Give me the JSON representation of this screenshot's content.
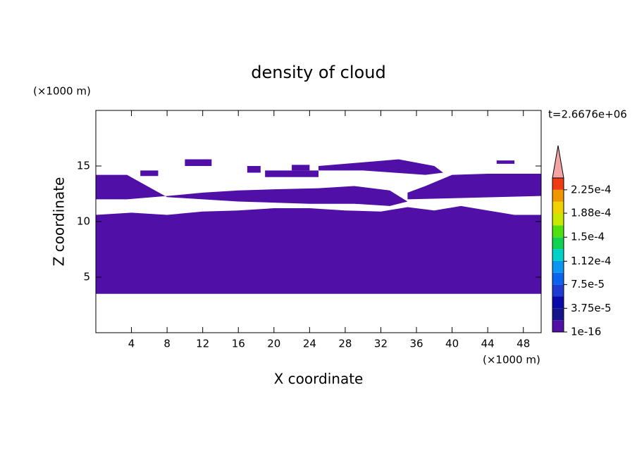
{
  "chart_data": {
    "type": "contour",
    "title": "density of cloud",
    "x_label": "X coordinate",
    "y_label": "Z coordinate",
    "x_unit": "(×1000 m)",
    "y_unit": "(×1000 m)",
    "annotation": "t=2.6676e+06",
    "xlim": [
      0,
      50
    ],
    "ylim": [
      0,
      20
    ],
    "xticks": [
      4,
      8,
      12,
      16,
      20,
      24,
      28,
      32,
      36,
      40,
      44,
      48
    ],
    "yticks": [
      5,
      10,
      15
    ],
    "regions": [
      {
        "x": [
          0,
          50,
          50,
          47,
          44,
          41,
          38,
          35,
          32,
          28,
          24,
          20,
          16,
          12,
          8,
          4,
          0
        ],
        "z": [
          3.5,
          3.5,
          10.6,
          10.6,
          11.0,
          11.4,
          11.0,
          11.3,
          10.9,
          11.0,
          11.2,
          11.2,
          11.0,
          10.9,
          10.6,
          10.8,
          10.6
        ]
      },
      {
        "x": [
          0,
          3.5,
          8,
          12,
          16,
          20,
          25,
          29,
          33,
          35,
          33,
          29,
          24,
          20,
          16,
          12,
          8,
          3.5,
          0
        ],
        "z": [
          12.0,
          12.0,
          12.3,
          12.6,
          12.8,
          12.9,
          13.0,
          13.2,
          12.8,
          11.8,
          11.4,
          11.6,
          11.6,
          11.7,
          11.8,
          12.0,
          12.2,
          14.2,
          14.2
        ]
      },
      {
        "x": [
          35,
          50,
          50,
          44,
          40,
          37,
          35
        ],
        "z": [
          12.0,
          12.3,
          14.3,
          14.3,
          14.2,
          13.2,
          12.6
        ]
      },
      {
        "x": [
          25,
          34,
          38,
          39,
          37,
          30,
          25
        ],
        "z": [
          15.0,
          15.6,
          15.0,
          14.4,
          14.2,
          14.6,
          14.6
        ]
      },
      {
        "x": [
          19,
          25,
          25,
          19
        ],
        "z": [
          14.0,
          14.0,
          14.6,
          14.6
        ]
      },
      {
        "x": [
          10,
          13,
          13,
          10
        ],
        "z": [
          15.0,
          15.0,
          15.6,
          15.6
        ]
      },
      {
        "x": [
          17,
          18.5,
          18.5,
          17
        ],
        "z": [
          14.4,
          14.4,
          15.0,
          15.0
        ]
      },
      {
        "x": [
          5,
          7,
          7,
          5
        ],
        "z": [
          14.1,
          14.1,
          14.6,
          14.6
        ]
      },
      {
        "x": [
          45,
          47,
          47,
          45
        ],
        "z": [
          15.2,
          15.2,
          15.5,
          15.5
        ]
      },
      {
        "x": [
          22,
          24,
          24,
          22
        ],
        "z": [
          14.6,
          14.6,
          15.1,
          15.1
        ]
      }
    ],
    "colorbar": {
      "levels": [
        1e-16,
        1.875e-05,
        3.75e-05,
        5.625e-05,
        7.5e-05,
        9.375e-05,
        0.0001125,
        0.00013125,
        0.00015,
        0.00016875,
        0.0001875,
        0.00020625,
        0.000225,
        0.00024375
      ],
      "colors": [
        "#5010a8",
        "#14148c",
        "#0a0aaa",
        "#1e3cd2",
        "#0a64f0",
        "#0a96f0",
        "#00d2c8",
        "#10d250",
        "#50e010",
        "#c8e800",
        "#f0d200",
        "#f09600",
        "#f03c14"
      ],
      "over_color": "#f4a4a4",
      "ticks": [
        1e-16,
        {
          "value": 3.75e-05,
          "label": "3.75e-5"
        },
        {
          "value": 7.5e-05,
          "label": "7.5e-5"
        },
        {
          "value": 0.000112,
          "label": "1.12e-4"
        },
        {
          "value": 0.00015,
          "label": "1.5e-4"
        },
        {
          "value": 0.000188,
          "label": "1.88e-4"
        },
        {
          "value": 0.000225,
          "label": "2.25e-4"
        }
      ]
    }
  }
}
